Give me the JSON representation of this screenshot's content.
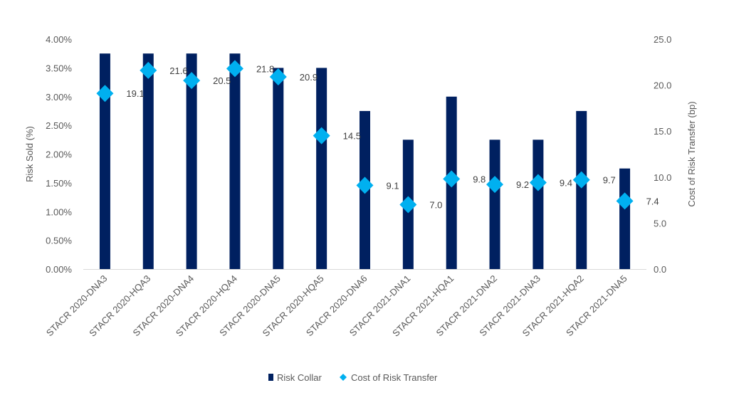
{
  "chart_data": {
    "type": "bar",
    "categories": [
      "STACR 2020-DNA3",
      "STACR 2020-HQA3",
      "STACR 2020-DNA4",
      "STACR 2020-HQA4",
      "STACR 2020-DNA5",
      "STACR 2020-HQA5",
      "STACR 2020-DNA6",
      "STACR 2021-DNA1",
      "STACR 2021-HQA1",
      "STACR 2021-DNA2",
      "STACR 2021-DNA3",
      "STACR 2021-HQA2",
      "STACR 2021-DNA5"
    ],
    "series": [
      {
        "name": "Risk Collar",
        "type": "bar",
        "axis": "left",
        "color": "#002060",
        "values": [
          3.75,
          3.75,
          3.75,
          3.75,
          3.5,
          3.5,
          2.75,
          2.25,
          3.0,
          2.25,
          2.25,
          2.75,
          1.75
        ]
      },
      {
        "name": "Cost of Risk Transfer",
        "type": "scatter",
        "marker": "diamond",
        "axis": "right",
        "color": "#00B0F0",
        "values": [
          19.1,
          21.6,
          20.5,
          21.8,
          20.9,
          14.5,
          9.1,
          7.0,
          9.8,
          9.2,
          9.4,
          9.7,
          7.4
        ],
        "labels": [
          "19.1",
          "21.6",
          "20.5",
          "21.8",
          "20.9",
          "14.5",
          "9.1",
          "7.0",
          "9.8",
          "9.2",
          "9.4",
          "9.7",
          "7.4"
        ]
      }
    ],
    "y_left": {
      "label": "Risk Sold (%)",
      "lim": [
        0,
        4
      ],
      "ticks": [
        0,
        0.5,
        1,
        1.5,
        2,
        2.5,
        3,
        3.5,
        4
      ],
      "tick_labels": [
        "0.00%",
        "0.50%",
        "1.00%",
        "1.50%",
        "2.00%",
        "2.50%",
        "3.00%",
        "3.50%",
        "4.00%"
      ]
    },
    "y_right": {
      "label": "Cost of Risk Transfer (bp)",
      "lim": [
        0,
        25
      ],
      "ticks": [
        0,
        5,
        10,
        15,
        20,
        25
      ],
      "tick_labels": [
        "0.0",
        "5.0",
        "10.0",
        "15.0",
        "20.0",
        "25.0"
      ]
    },
    "grid": false,
    "legend": "bottom-center"
  }
}
